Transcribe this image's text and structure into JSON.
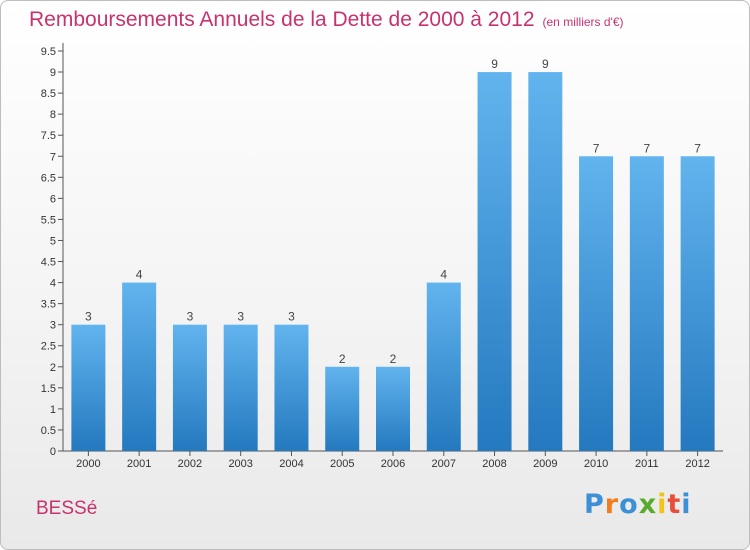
{
  "title": "Remboursements Annuels de la Dette de 2000 à 2012",
  "subtitle": "(en milliers d'€)",
  "commune": "BESSé",
  "logo": {
    "letters": [
      "P",
      "r",
      "o",
      "x",
      "i",
      "t",
      "i"
    ],
    "colors": [
      "#3d8fd6",
      "#f07e1e",
      "#3d8fd6",
      "#5aaa2c",
      "#f0c419",
      "#e84e3c",
      "#3d8fd6"
    ]
  },
  "colors": {
    "bar_light": "#62b4ee",
    "bar_dark": "#2479bf",
    "title": "#c8326e"
  },
  "chart_data": {
    "type": "bar",
    "categories": [
      "2000",
      "2001",
      "2002",
      "2003",
      "2004",
      "2005",
      "2006",
      "2007",
      "2008",
      "2009",
      "2010",
      "2011",
      "2012"
    ],
    "values": [
      3,
      4,
      3,
      3,
      3,
      2,
      2,
      4,
      9,
      9,
      7,
      7,
      7
    ],
    "data_labels": [
      "3",
      "4",
      "3",
      "3",
      "3",
      "2",
      "2",
      "4",
      "9",
      "9",
      "7",
      "7",
      "7"
    ],
    "y_ticks": [
      "0",
      "0.5",
      "1",
      "1.5",
      "2",
      "2.5",
      "3",
      "3.5",
      "4",
      "4.5",
      "5",
      "5.5",
      "6",
      "6.5",
      "7",
      "7.5",
      "8",
      "8.5",
      "9",
      "9.5"
    ],
    "ylim": [
      0,
      9.5
    ],
    "grid": false
  }
}
